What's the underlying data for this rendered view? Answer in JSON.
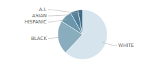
{
  "chart_data": {
    "type": "pie",
    "categories": [
      "WHITE",
      "BLACK",
      "HISPANIC",
      "ASIAN",
      "A.I."
    ],
    "values": [
      62,
      22,
      8,
      5,
      3
    ],
    "colors": [
      "#d5e4ed",
      "#8aadbe",
      "#6b96ac",
      "#4f7f9a",
      "#3a6880"
    ]
  }
}
